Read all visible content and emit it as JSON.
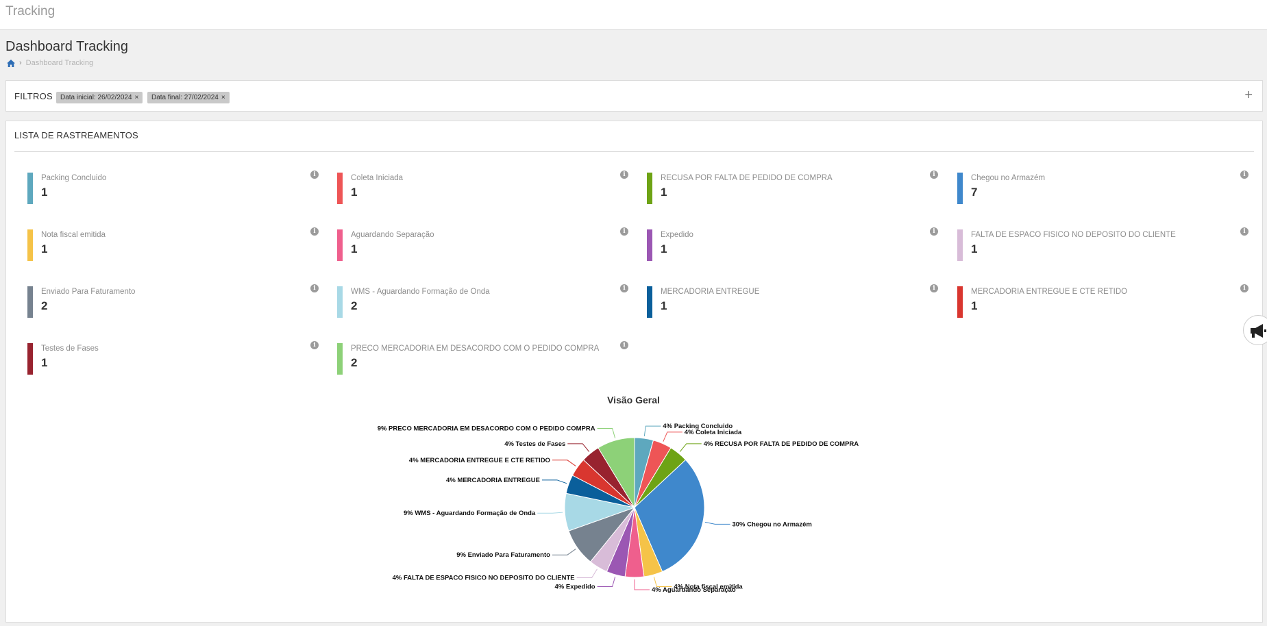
{
  "app": {
    "title": "Tracking"
  },
  "page": {
    "title": "Dashboard Tracking"
  },
  "breadcrumb": {
    "home_icon": "home-icon",
    "current": "Dashboard Tracking"
  },
  "filters": {
    "title": "FILTROS",
    "chips": [
      {
        "label": "Data inicial: 26/02/2024",
        "remove": "×"
      },
      {
        "label": "Data final: 27/02/2024",
        "remove": "×"
      }
    ],
    "expand": "+"
  },
  "list": {
    "title": "LISTA DE RASTREAMENTOS",
    "cards": [
      {
        "label": "Packing Concluido",
        "value": "1",
        "color": "#5ea8be",
        "info": "i"
      },
      {
        "label": "Coleta Iniciada",
        "value": "1",
        "color": "#ee5556",
        "info": "i"
      },
      {
        "label": "RECUSA POR FALTA DE PEDIDO DE COMPRA",
        "value": "1",
        "color": "#6ea315",
        "info": "i"
      },
      {
        "label": "Chegou no Armazém",
        "value": "7",
        "color": "#3f88cc",
        "info": "i"
      },
      {
        "label": "Nota fiscal emitida",
        "value": "1",
        "color": "#f5c348",
        "info": "i"
      },
      {
        "label": "Aguardando Separação",
        "value": "1",
        "color": "#ef5f8d",
        "info": "i"
      },
      {
        "label": "Expedido",
        "value": "1",
        "color": "#9b57b3",
        "info": "i"
      },
      {
        "label": "FALTA DE ESPACO FISICO NO DEPOSITO DO CLIENTE",
        "value": "1",
        "color": "#d8bcd8",
        "info": "i"
      },
      {
        "label": "Enviado Para Faturamento",
        "value": "2",
        "color": "#76828f",
        "info": "i"
      },
      {
        "label": "WMS - Aguardando Formação de Onda",
        "value": "2",
        "color": "#a8d9e6",
        "info": "i"
      },
      {
        "label": "MERCADORIA ENTREGUE",
        "value": "1",
        "color": "#0a5f9b",
        "info": "i"
      },
      {
        "label": "MERCADORIA ENTREGUE E CTE RETIDO",
        "value": "1",
        "color": "#d9362f",
        "info": "i"
      },
      {
        "label": "Testes de Fases",
        "value": "1",
        "color": "#98232f",
        "info": "i"
      },
      {
        "label": "PRECO MERCADORIA EM DESACORDO COM O PEDIDO COMPRA",
        "value": "2",
        "color": "#8dd178",
        "info": "i"
      }
    ]
  },
  "announcement": {
    "icon": "megaphone-icon"
  },
  "chart_data": {
    "type": "pie",
    "title": "Visão Geral",
    "slices": [
      {
        "name": "Packing Concluido",
        "value": 1,
        "label": "4% Packing Concluido",
        "color": "#5ea8be"
      },
      {
        "name": "Coleta Iniciada",
        "value": 1,
        "label": "4% Coleta Iniciada",
        "color": "#ee5556"
      },
      {
        "name": "RECUSA POR FALTA DE PEDIDO DE COMPRA",
        "value": 1,
        "label": "4% RECUSA POR FALTA DE PEDIDO DE COMPRA",
        "color": "#6ea315"
      },
      {
        "name": "Chegou no Armazém",
        "value": 7,
        "label": "30% Chegou no Armazém",
        "color": "#3f88cc"
      },
      {
        "name": "Nota fiscal emitida",
        "value": 1,
        "label": "4% Nota fiscal emitida",
        "color": "#f5c348"
      },
      {
        "name": "Aguardando Separação",
        "value": 1,
        "label": "4% Aguardando Separação",
        "color": "#ef5f8d"
      },
      {
        "name": "Expedido",
        "value": 1,
        "label": "4% Expedido",
        "color": "#9b57b3"
      },
      {
        "name": "FALTA DE ESPACO FISICO NO DEPOSITO DO CLIENTE",
        "value": 1,
        "label": "4% FALTA DE ESPACO FISICO NO DEPOSITO DO CLIENTE",
        "color": "#d8bcd8"
      },
      {
        "name": "Enviado Para Faturamento",
        "value": 2,
        "label": "9% Enviado Para Faturamento",
        "color": "#76828f"
      },
      {
        "name": "WMS - Aguardando Formação de Onda",
        "value": 2,
        "label": "9% WMS - Aguardando Formação de Onda",
        "color": "#a8d9e6"
      },
      {
        "name": "MERCADORIA ENTREGUE",
        "value": 1,
        "label": "4% MERCADORIA ENTREGUE",
        "color": "#0a5f9b"
      },
      {
        "name": "MERCADORIA ENTREGUE E CTE RETIDO",
        "value": 1,
        "label": "4% MERCADORIA ENTREGUE E CTE RETIDO",
        "color": "#d9362f"
      },
      {
        "name": "Testes de Fases",
        "value": 1,
        "label": "4% Testes de Fases",
        "color": "#98232f"
      },
      {
        "name": "PRECO MERCADORIA EM DESACORDO COM O PEDIDO COMPRA",
        "value": 2,
        "label": "9% PRECO MERCADORIA EM DESACORDO COM O PEDIDO COMPRA",
        "color": "#8dd178"
      }
    ]
  }
}
